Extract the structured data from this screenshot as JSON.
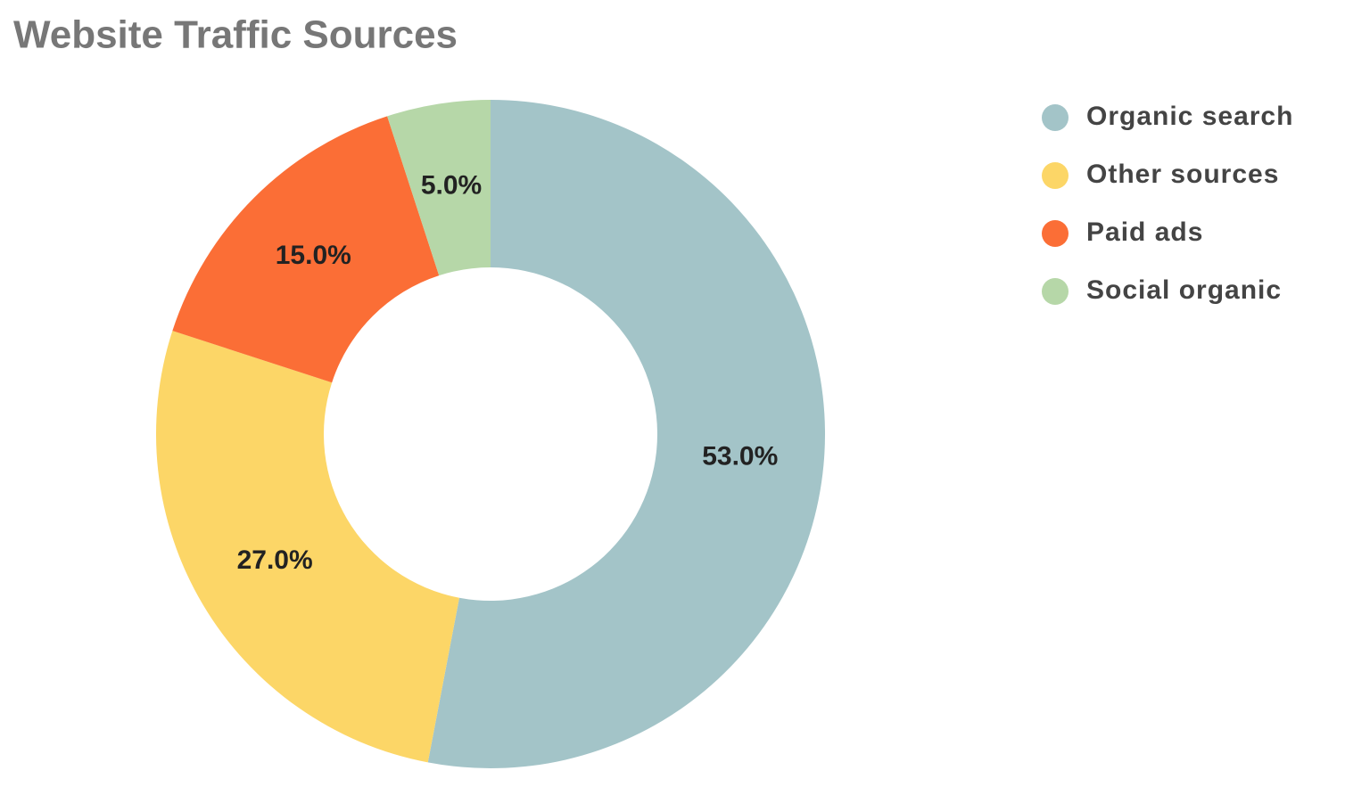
{
  "chart_data": {
    "type": "donut",
    "title": "Website Traffic Sources",
    "categories": [
      "Organic search",
      "Other sources",
      "Paid ads",
      "Social organic"
    ],
    "values": [
      53,
      27,
      15,
      5
    ],
    "value_labels": [
      "53.0%",
      "27.0%",
      "15.0%",
      "5.0%"
    ],
    "colors": [
      "#a3c4c8",
      "#fcd667",
      "#fb6e36",
      "#b6d7a8"
    ],
    "legend": "right"
  }
}
